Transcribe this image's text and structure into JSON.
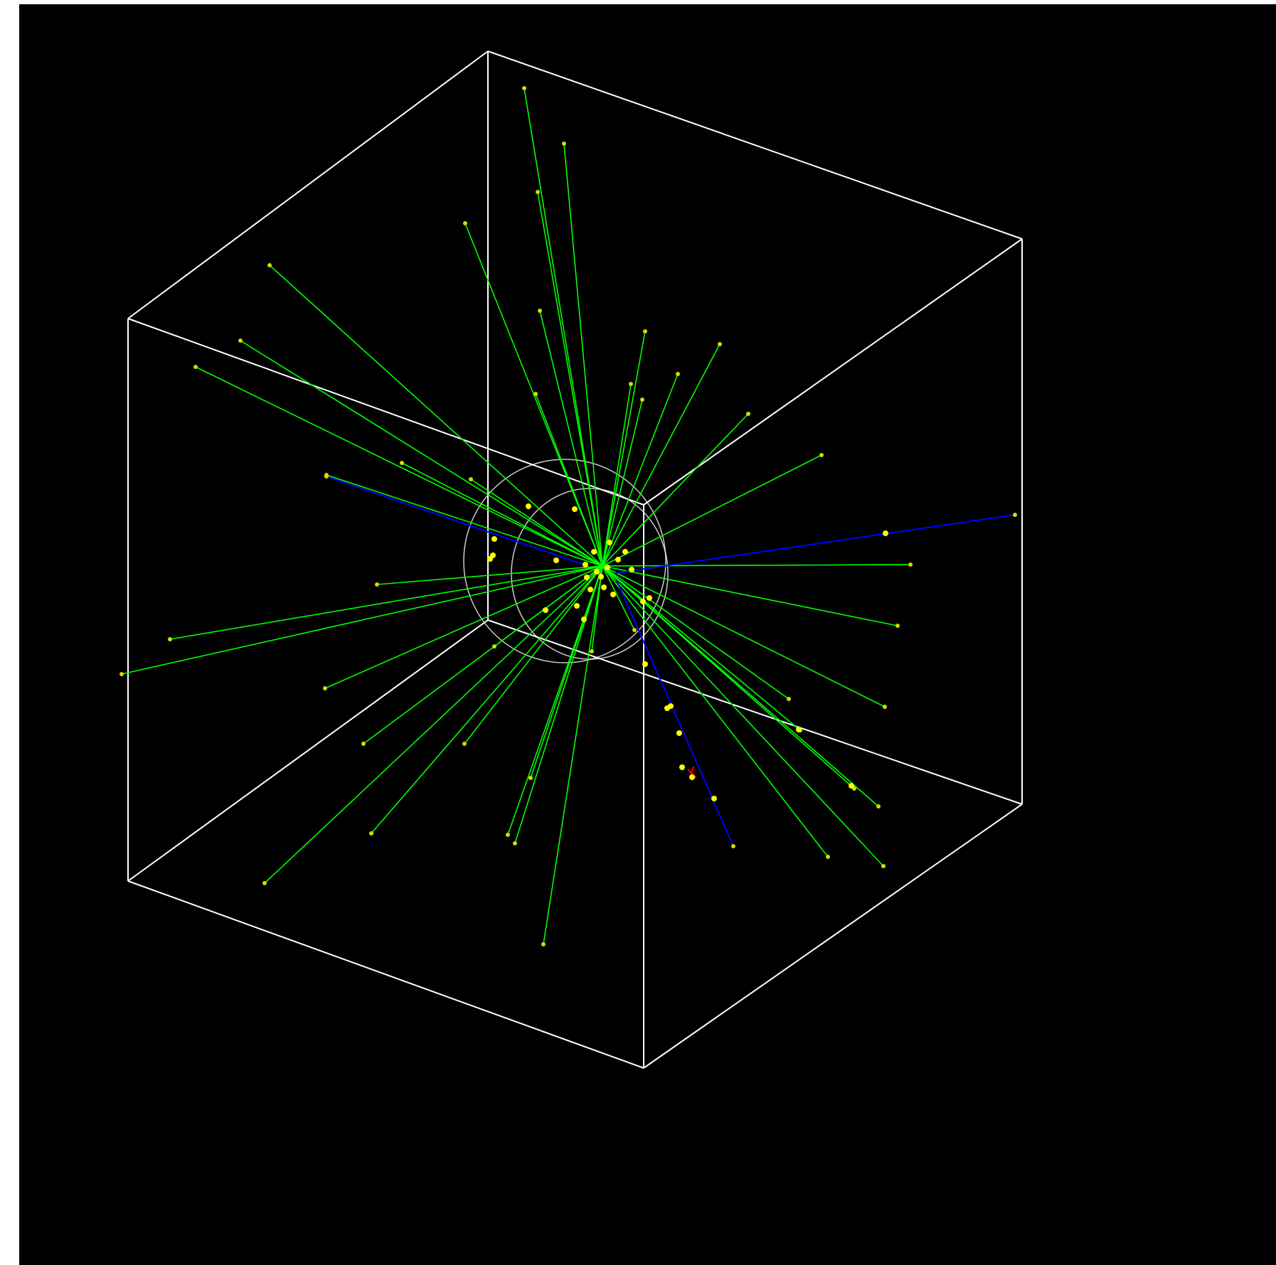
{
  "viewer": {
    "background_color": "#000000",
    "detector_color": "#ffffff",
    "track_colors": {
      "charged": "#00ff00",
      "neutral": "#0000ff",
      "secondary": "#ff0000"
    },
    "hit_color": "#ffff00"
  }
}
